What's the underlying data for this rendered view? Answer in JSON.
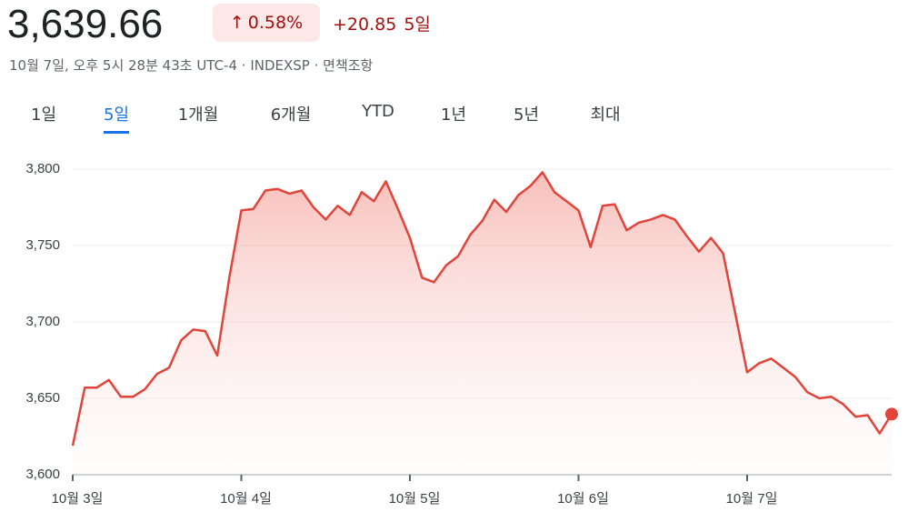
{
  "header": {
    "price": "3,639.66",
    "change_pct": "0.58%",
    "change": "+20.85",
    "period": "5일",
    "meta": "10월 7일, 오후 5시 28분 43초 UTC-4 · INDEXSP · 면책조항",
    "tabs": [
      "1일",
      "5일",
      "1개월",
      "6개월",
      "YTD",
      "1년",
      "5년",
      "최대"
    ],
    "active_tab": 1
  },
  "chart_data": {
    "type": "line",
    "color": "#e0443a",
    "categories": [
      "10월 3일",
      null,
      null,
      null,
      null,
      null,
      null,
      null,
      null,
      null,
      null,
      null,
      null,
      null,
      "10월 4일",
      null,
      null,
      null,
      null,
      null,
      null,
      null,
      null,
      null,
      null,
      null,
      null,
      null,
      "10월 5일",
      null,
      null,
      null,
      null,
      null,
      null,
      null,
      null,
      null,
      null,
      null,
      null,
      null,
      "10월 6일",
      null,
      null,
      null,
      null,
      null,
      null,
      null,
      null,
      null,
      null,
      null,
      null,
      null,
      "10월 7일",
      null,
      null,
      null,
      null,
      null,
      null,
      null,
      null,
      null,
      null,
      null,
      null
    ],
    "values": [
      3619,
      3657,
      3657,
      3662,
      3651,
      3651,
      3656,
      3666,
      3670,
      3688,
      3695,
      3694,
      3678,
      3729,
      3773,
      3774,
      3786,
      3787,
      3784,
      3786,
      3775,
      3767,
      3776,
      3770,
      3785,
      3779,
      3792,
      3774,
      3755,
      3729,
      3726,
      3737,
      3743,
      3757,
      3766,
      3780,
      3772,
      3783,
      3789,
      3798,
      3785,
      3779,
      3773,
      3749,
      3776,
      3777,
      3760,
      3765,
      3767,
      3770,
      3767,
      3756,
      3746,
      3755,
      3745,
      3706,
      3667,
      3673,
      3676,
      3670,
      3664,
      3654,
      3650,
      3651,
      3646,
      3638,
      3639,
      3627,
      3639.66
    ],
    "ylim": [
      3600,
      3800
    ],
    "yticks": [
      {
        "value": 3600,
        "label": "3,600"
      },
      {
        "value": 3650,
        "label": "3,650"
      },
      {
        "value": 3700,
        "label": "3,700"
      },
      {
        "value": 3750,
        "label": "3,750"
      },
      {
        "value": 3800,
        "label": "3,800"
      }
    ],
    "grid": true
  }
}
